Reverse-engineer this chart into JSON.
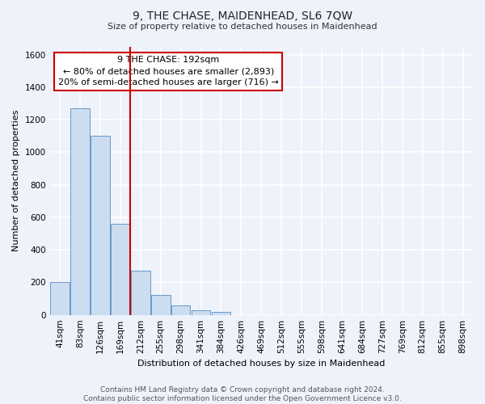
{
  "title": "9, THE CHASE, MAIDENHEAD, SL6 7QW",
  "subtitle": "Size of property relative to detached houses in Maidenhead",
  "xlabel": "Distribution of detached houses by size in Maidenhead",
  "ylabel": "Number of detached properties",
  "footer_line1": "Contains HM Land Registry data © Crown copyright and database right 2024.",
  "footer_line2": "Contains public sector information licensed under the Open Government Licence v3.0.",
  "bar_labels": [
    "41sqm",
    "83sqm",
    "126sqm",
    "169sqm",
    "212sqm",
    "255sqm",
    "298sqm",
    "341sqm",
    "384sqm",
    "426sqm",
    "469sqm",
    "512sqm",
    "555sqm",
    "598sqm",
    "641sqm",
    "684sqm",
    "727sqm",
    "769sqm",
    "812sqm",
    "855sqm",
    "898sqm"
  ],
  "bar_heights": [
    200,
    1270,
    1100,
    560,
    270,
    125,
    60,
    30,
    20,
    0,
    0,
    0,
    0,
    0,
    0,
    0,
    0,
    0,
    0,
    0,
    0
  ],
  "bar_color": "#ccddf0",
  "bar_edge_color": "#6699cc",
  "vline_x": 3.5,
  "vline_color": "#cc0000",
  "annotation_title": "9 THE CHASE: 192sqm",
  "annotation_line1": "← 80% of detached houses are smaller (2,893)",
  "annotation_line2": "20% of semi-detached houses are larger (716) →",
  "annotation_box_color": "#ffffff",
  "annotation_box_edge": "#cc0000",
  "ylim": [
    0,
    1650
  ],
  "yticks": [
    0,
    200,
    400,
    600,
    800,
    1000,
    1200,
    1400,
    1600
  ],
  "bg_color": "#eef2fa",
  "grid_color": "#ffffff",
  "title_fontsize": 10,
  "subtitle_fontsize": 8,
  "ylabel_fontsize": 8,
  "xlabel_fontsize": 8,
  "tick_fontsize": 7.5,
  "footer_fontsize": 6.5,
  "ann_fontsize": 8
}
